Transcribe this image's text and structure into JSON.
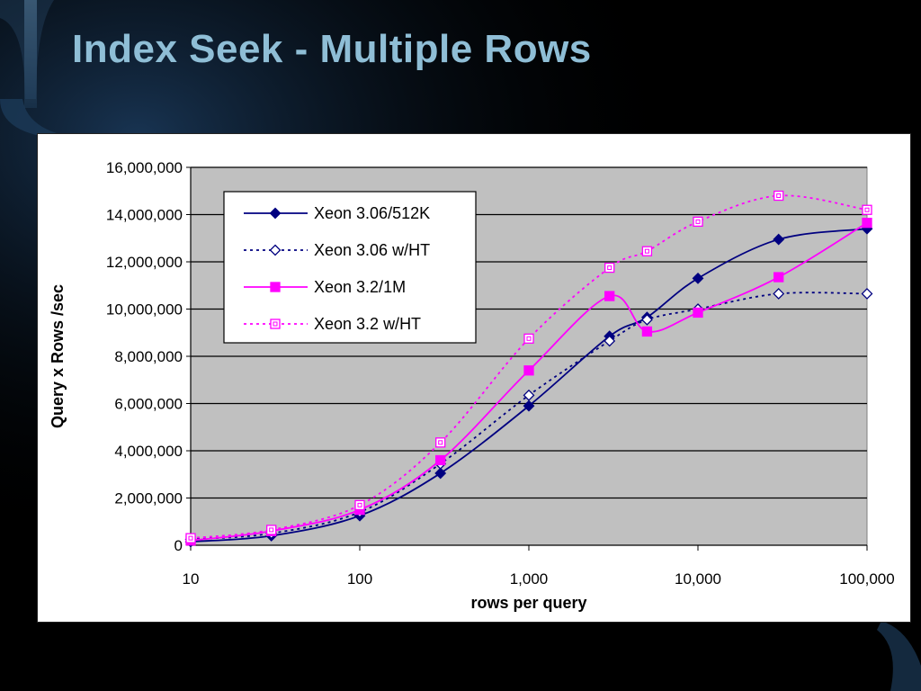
{
  "slide": {
    "title": "Index Seek - Multiple Rows"
  },
  "chart_data": {
    "type": "line",
    "x_scale": "log",
    "xlabel": "rows per query",
    "ylabel": "Query x Rows /sec",
    "xlim": [
      10,
      100000
    ],
    "ylim": [
      0,
      16000000
    ],
    "x_ticks": [
      10,
      100,
      1000,
      10000,
      100000
    ],
    "x_tick_labels": [
      "10",
      "100",
      "1,000",
      "10,000",
      "100,000"
    ],
    "y_ticks": [
      0,
      2000000,
      4000000,
      6000000,
      8000000,
      10000000,
      12000000,
      14000000,
      16000000
    ],
    "y_tick_labels": [
      "0",
      "2,000,000",
      "4,000,000",
      "6,000,000",
      "8,000,000",
      "10,000,000",
      "12,000,000",
      "14,000,000",
      "16,000,000"
    ],
    "grid": true,
    "legend_position": "top-left",
    "plot_background": "#c0c0c0",
    "series": [
      {
        "name": "Xeon 3.06/512K",
        "color": "#000080",
        "line": "solid",
        "marker": "diamond-filled",
        "x": [
          10,
          30,
          100,
          300,
          1000,
          3000,
          5000,
          10000,
          30000,
          100000
        ],
        "y": [
          150000,
          400000,
          1250000,
          3050000,
          5900000,
          8850000,
          9650000,
          11300000,
          12950000,
          13400000
        ]
      },
      {
        "name": "Xeon 3.06 w/HT",
        "color": "#000080",
        "line": "dotted",
        "marker": "diamond-open",
        "x": [
          10,
          30,
          100,
          300,
          1000,
          3000,
          5000,
          10000,
          30000,
          100000
        ],
        "y": [
          250000,
          500000,
          1400000,
          3450000,
          6350000,
          8650000,
          9550000,
          10000000,
          10650000,
          10650000
        ]
      },
      {
        "name": "Xeon 3.2/1M",
        "color": "#ff00ff",
        "line": "solid",
        "marker": "square-filled",
        "x": [
          10,
          30,
          100,
          300,
          1000,
          3000,
          5000,
          10000,
          30000,
          100000
        ],
        "y": [
          200000,
          600000,
          1500000,
          3600000,
          7400000,
          10550000,
          9050000,
          9850000,
          11350000,
          13650000
        ]
      },
      {
        "name": "Xeon 3.2 w/HT",
        "color": "#ff00ff",
        "line": "dotted",
        "marker": "square-open",
        "x": [
          10,
          30,
          100,
          300,
          1000,
          3000,
          5000,
          10000,
          30000,
          100000
        ],
        "y": [
          300000,
          650000,
          1700000,
          4350000,
          8750000,
          11750000,
          12450000,
          13700000,
          14800000,
          14200000
        ]
      }
    ]
  }
}
